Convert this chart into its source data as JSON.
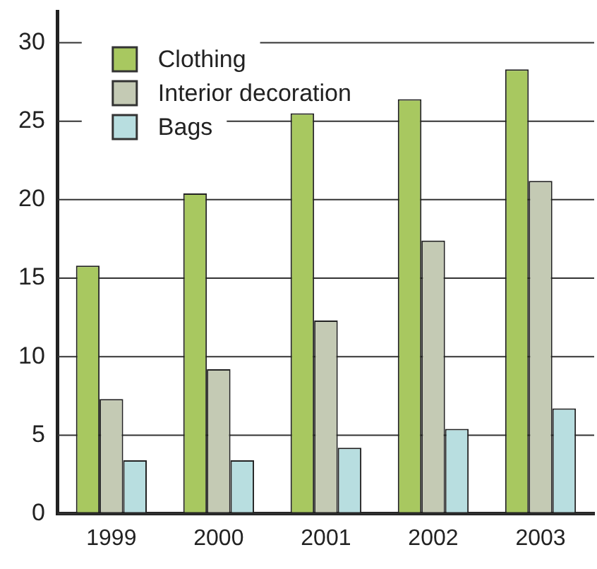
{
  "chart_data": {
    "type": "bar",
    "categories": [
      "1999",
      "2000",
      "2001",
      "2002",
      "2003"
    ],
    "series": [
      {
        "name": "Clothing",
        "color": "#a8c860",
        "values": [
          15.8,
          20.4,
          25.5,
          26.4,
          28.3
        ]
      },
      {
        "name": "Interior decoration",
        "color": "#c4cab4",
        "values": [
          7.3,
          9.2,
          12.3,
          17.4,
          21.2
        ]
      },
      {
        "name": "Bags",
        "color": "#b8dee0",
        "values": [
          3.4,
          3.4,
          4.2,
          5.4,
          6.7
        ]
      }
    ],
    "ylim": [
      0,
      32
    ],
    "yticks": [
      0,
      5,
      10,
      15,
      20,
      25,
      30
    ],
    "grid": "y",
    "legend": "top left"
  }
}
